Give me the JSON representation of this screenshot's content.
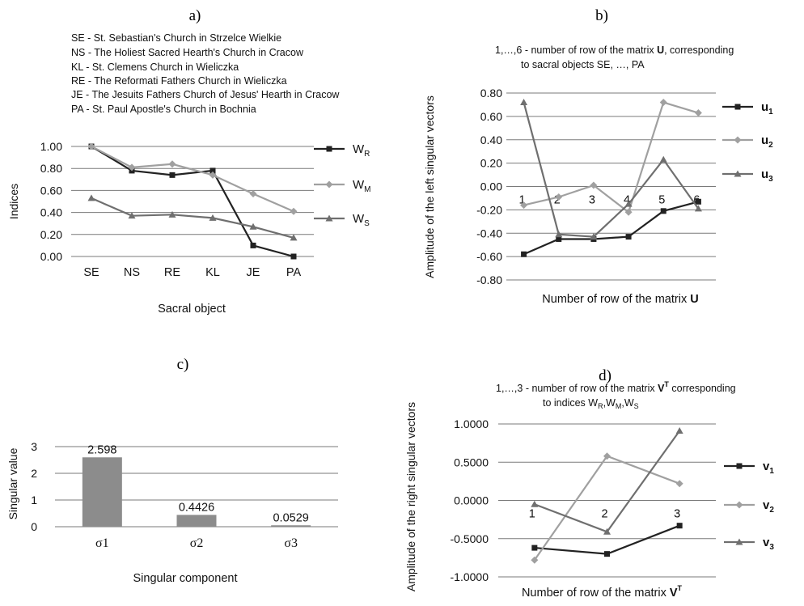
{
  "panel_labels": [
    "a)",
    "b)",
    "c)",
    "d)"
  ],
  "colors": {
    "series_dark": "#222222",
    "series_light": "#a0a0a0",
    "series_mid": "#6f6f6f",
    "bar": "#8c8c8c",
    "grid": "#7a7a7a"
  },
  "chart_data": [
    {
      "type": "line",
      "legend_text": [
        "SE - St. Sebastian's Church in Strzelce Wielkie",
        "NS - The Holiest Sacred Hearth's Church in Cracow",
        "KL - St. Clemens Church in Wieliczka",
        "RE - The Reformati Fathers Church in Wieliczka",
        "JE - The Jesuits Fathers Church of Jesus' Hearth in Cracow",
        "PA - St. Paul Apostle's Church in Bochnia"
      ],
      "ylabel": "Indices",
      "xlabel": "Sacral object",
      "categories": [
        "SE",
        "NS",
        "RE",
        "KL",
        "JE",
        "PA"
      ],
      "ylim": [
        0,
        1
      ],
      "yticks": [
        "0.00",
        "0.20",
        "0.40",
        "0.60",
        "0.80",
        "1.00"
      ],
      "grid": true,
      "legend": "right",
      "series": [
        {
          "name": "W",
          "sub": "R",
          "values": [
            1.0,
            0.78,
            0.74,
            0.78,
            0.1,
            0.0
          ]
        },
        {
          "name": "W",
          "sub": "M",
          "values": [
            1.0,
            0.81,
            0.84,
            0.74,
            0.57,
            0.41
          ]
        },
        {
          "name": "W",
          "sub": "S",
          "values": [
            0.53,
            0.37,
            0.38,
            0.35,
            0.27,
            0.17
          ]
        }
      ]
    },
    {
      "type": "line",
      "annotation": [
        "1,…,6  - number of row of the matrix ",
        "U",
        ", corresponding",
        "to sacral objects SE, …, PA"
      ],
      "ylabel": "Amplitude of the left singular  vectors",
      "xlabel": "Number of row of the matrix ",
      "xlabel_bold": "U",
      "categories": [
        "1",
        "2",
        "3",
        "4",
        "5",
        "6"
      ],
      "ylim": [
        -0.8,
        0.8
      ],
      "yticks": [
        "-0.80",
        "-0.60",
        "-0.40",
        "-0.20",
        "0.00",
        "0.20",
        "0.40",
        "0.60",
        "0.80"
      ],
      "grid": true,
      "legend": "right",
      "series": [
        {
          "name": "u",
          "sub": "1",
          "values": [
            -0.58,
            -0.45,
            -0.45,
            -0.43,
            -0.21,
            -0.13
          ]
        },
        {
          "name": "u",
          "sub": "2",
          "values": [
            -0.16,
            -0.09,
            0.01,
            -0.22,
            0.72,
            0.63
          ]
        },
        {
          "name": "u",
          "sub": "3",
          "values": [
            0.72,
            -0.41,
            -0.43,
            -0.15,
            0.23,
            -0.19
          ]
        }
      ]
    },
    {
      "type": "bar",
      "ylabel": "Singular value",
      "xlabel": "Singular component",
      "categories": [
        "σ1",
        "σ2",
        "σ3"
      ],
      "values": [
        2.598,
        0.4426,
        0.0529
      ],
      "value_labels": [
        "2.598",
        "0.4426",
        "0.0529"
      ],
      "ylim": [
        0,
        3
      ],
      "yticks": [
        "0",
        "1",
        "2",
        "3"
      ],
      "grid": true
    },
    {
      "type": "line",
      "annotation": [
        "1,…,3  - number of row of the matrix ",
        "V",
        "T",
        " corresponding",
        "to indices W",
        "R",
        ",W",
        "M",
        ",W",
        "S"
      ],
      "ylabel": "Amplitude of the right singular vectors",
      "xlabel": "Number of row of the matrix ",
      "xlabel_bold": "V",
      "xlabel_sup": "T",
      "categories": [
        "1",
        "2",
        "3"
      ],
      "ylim": [
        -1,
        1
      ],
      "yticks": [
        "-1.0000",
        "-0.5000",
        "0.0000",
        "0.5000",
        "1.0000"
      ],
      "grid": true,
      "legend": "right",
      "series": [
        {
          "name": "v",
          "sub": "1",
          "values": [
            -0.62,
            -0.7,
            -0.33
          ]
        },
        {
          "name": "v",
          "sub": "2",
          "values": [
            -0.78,
            0.58,
            0.22
          ]
        },
        {
          "name": "v",
          "sub": "3",
          "values": [
            -0.05,
            -0.41,
            0.91
          ]
        }
      ]
    }
  ]
}
